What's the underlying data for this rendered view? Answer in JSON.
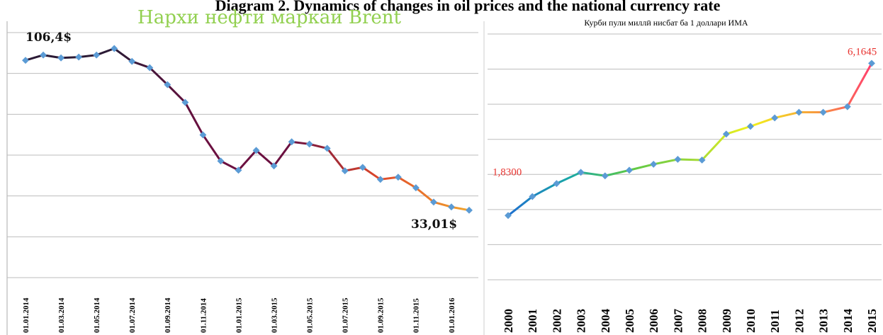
{
  "title": "Diagram 2. Dynamics of changes in oil prices and the national currency rate",
  "chart_data": [
    {
      "type": "line",
      "title": "Нархи нефти маркаи Brent",
      "categories": [
        "01.01.2014",
        null,
        "01.03.2014",
        null,
        "01.05.2014",
        null,
        "01.07.2014",
        null,
        "01.09.2014",
        null,
        "01.11.2014",
        null,
        "01.01.2015",
        null,
        "01.03.2015",
        null,
        "01.05.2015",
        null,
        "01.07.2015",
        null,
        "01.09.2015",
        null,
        "01.11.2015",
        null,
        "01.01.2016",
        null
      ],
      "values": [
        106.4,
        109.0,
        107.6,
        108.0,
        109.0,
        112.2,
        105.9,
        102.8,
        94.5,
        85.8,
        69.9,
        57.1,
        52.6,
        62.3,
        54.7,
        66.5,
        65.4,
        63.3,
        52.3,
        54.0,
        48.1,
        49.2,
        44.0,
        37.0,
        34.6,
        33.01
      ],
      "value_labels": [
        "106,4$",
        null,
        null,
        null,
        null,
        null,
        null,
        null,
        null,
        null,
        null,
        null,
        null,
        null,
        null,
        null,
        null,
        null,
        null,
        null,
        null,
        null,
        null,
        null,
        null,
        "33,01$"
      ],
      "colors": [
        "#2b1a35",
        "#2b1a35",
        "#6b1040",
        "#6b1040",
        "#e0482a",
        "#f2a52d"
      ],
      "marker_color": "#5b9bd5",
      "ylim": [
        0,
        120
      ],
      "yticks": [
        0,
        20,
        40,
        60,
        80,
        100,
        120
      ],
      "grid": true
    },
    {
      "type": "line",
      "title": "Курби пули миллӣ нисбат ба 1 доллари ИМА",
      "categories": [
        "2000",
        "2001",
        "2002",
        "2003",
        "2004",
        "2005",
        "2006",
        "2007",
        "2008",
        "2009",
        "2010",
        "2011",
        "2012",
        "2013",
        "2014",
        "2015"
      ],
      "values": [
        1.83,
        2.37,
        2.74,
        3.06,
        2.96,
        3.12,
        3.29,
        3.43,
        3.41,
        4.15,
        4.37,
        4.61,
        4.77,
        4.77,
        4.93,
        6.1645
      ],
      "value_labels": [
        "1,8300",
        null,
        null,
        null,
        null,
        null,
        null,
        null,
        null,
        null,
        null,
        null,
        null,
        null,
        null,
        "6,1645"
      ],
      "colors": [
        "#1f6fcf",
        "#19a7a7",
        "#5bc846",
        "#9bd83a",
        "#f2f21a",
        "#f7a23a",
        "#ff3e6e"
      ],
      "marker_color": "#5b9bd5",
      "ylim": [
        0,
        7
      ],
      "yticks": [
        0,
        1,
        2,
        3,
        4,
        5,
        6,
        7
      ],
      "grid": true
    }
  ]
}
